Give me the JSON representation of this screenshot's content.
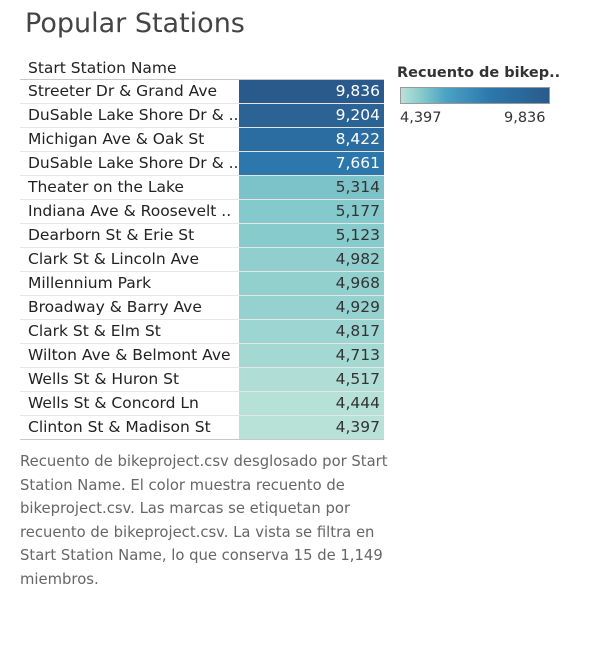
{
  "title": "Popular Stations",
  "chart_data": {
    "type": "table",
    "column_header": "Start Station Name",
    "measure": "Recuento de bikeproject.csv",
    "categories": [
      "Streeter Dr & Grand Ave",
      "DuSable Lake Shore Dr & ..",
      "Michigan Ave & Oak St",
      "DuSable Lake Shore Dr & ..",
      "Theater on the Lake",
      "Indiana Ave & Roosevelt ..",
      "Dearborn St & Erie St",
      "Clark St & Lincoln Ave",
      "Millennium Park",
      "Broadway & Barry Ave",
      "Clark St & Elm St",
      "Wilton Ave & Belmont Ave",
      "Wells St & Huron St",
      "Wells St & Concord Ln",
      "Clinton St & Madison St"
    ],
    "values": [
      9836,
      9204,
      8422,
      7661,
      5314,
      5177,
      5123,
      4982,
      4968,
      4929,
      4817,
      4713,
      4517,
      4444,
      4397
    ],
    "value_labels": [
      "9,836",
      "9,204",
      "8,422",
      "7,661",
      "5,314",
      "5,177",
      "5,123",
      "4,982",
      "4,968",
      "4,929",
      "4,817",
      "4,713",
      "4,517",
      "4,444",
      "4,397"
    ],
    "color_scale": {
      "min": 4397,
      "max": 9836,
      "min_label": "4,397",
      "max_label": "9,836",
      "low_color": "#b8e2d8",
      "high_color": "#2a5a8c"
    }
  },
  "legend": {
    "title": "Recuento de bikep.."
  },
  "caption": "Recuento de bikeproject.csv desglosado por Start Station Name.  El color muestra recuento de bikeproject.csv.  Las marcas se etiquetan por recuento de bikeproject.csv. La vista se filtra en Start Station Name, lo que conserva 15 de 1,149 miembros."
}
